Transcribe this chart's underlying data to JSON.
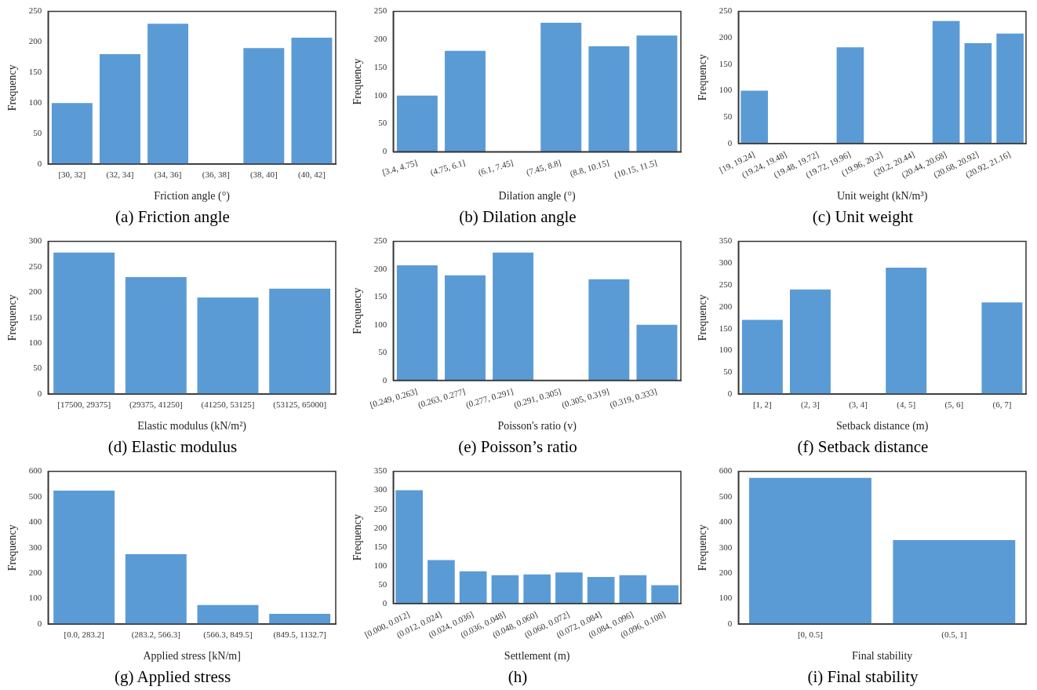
{
  "chart_data": [
    {
      "type": "bar",
      "title": "(a) Friction angle",
      "xlabel": "Friction angle (°)",
      "ylabel": "Frequency",
      "categories": [
        "[30, 32]",
        "(32, 34]",
        "(34, 36]",
        "(36, 38]",
        "(38, 40]",
        "(40, 42]"
      ],
      "values": [
        100,
        180,
        230,
        0,
        190,
        207
      ],
      "color": "#5b9bd5",
      "ylim": [
        0,
        250
      ],
      "yticks": [
        0,
        50,
        100,
        150,
        200,
        250
      ],
      "grid": false,
      "legend": false
    },
    {
      "type": "bar",
      "title": "(b) Dilation angle",
      "xlabel": "Dilation angle (°)",
      "ylabel": "Frequency",
      "categories": [
        "[3.4, 4.75]",
        "(4.75, 6.1]",
        "(6.1, 7.45]",
        "(7.45, 8.8]",
        "(8.8, 10.15]",
        "(10.15, 11.5]"
      ],
      "values": [
        100,
        180,
        0,
        230,
        188,
        207
      ],
      "color": "#5b9bd5",
      "ylim": [
        0,
        250
      ],
      "yticks": [
        0,
        50,
        100,
        150,
        200,
        250
      ],
      "grid": false,
      "legend": false
    },
    {
      "type": "bar",
      "title": "(c) Unit weight",
      "xlabel": "Unit weight (kN/m³)",
      "ylabel": "Frequency",
      "categories": [
        "[19, 19.24]",
        "(19.24, 19.48]",
        "(19.48, 19.72]",
        "(19.72, 19.96]",
        "(19.96, 20.2]",
        "(20.2, 20.44]",
        "(20.44, 20.68]",
        "(20.68, 20.92]",
        "(20.92, 21.16]"
      ],
      "values": [
        100,
        0,
        0,
        182,
        0,
        0,
        232,
        190,
        208
      ],
      "color": "#5b9bd5",
      "ylim": [
        0,
        250
      ],
      "yticks": [
        0,
        50,
        100,
        150,
        200,
        250
      ],
      "grid": false,
      "legend": false
    },
    {
      "type": "bar",
      "title": "(d) Elastic modulus",
      "xlabel": "Elastic modulus (kN/m²)",
      "ylabel": "Frequency",
      "categories": [
        "[17500, 29375]",
        "(29375, 41250]",
        "(41250, 53125]",
        "(53125, 65000]"
      ],
      "values": [
        278,
        230,
        190,
        207
      ],
      "color": "#5b9bd5",
      "ylim": [
        0,
        300
      ],
      "yticks": [
        0,
        50,
        100,
        150,
        200,
        250,
        300
      ],
      "grid": false,
      "legend": false
    },
    {
      "type": "bar",
      "title": "(e) Poisson’s ratio",
      "xlabel": "Poisson's ratio (v)",
      "ylabel": "Frequency",
      "categories": [
        "[0.249, 0.263]",
        "(0.263, 0.277]",
        "(0.277, 0.291]",
        "(0.291, 0.305]",
        "(0.305, 0.319]",
        "(0.319, 0.333]"
      ],
      "values": [
        207,
        189,
        230,
        0,
        182,
        100
      ],
      "color": "#5b9bd5",
      "ylim": [
        0,
        250
      ],
      "yticks": [
        0,
        50,
        100,
        150,
        200,
        250
      ],
      "grid": false,
      "legend": false
    },
    {
      "type": "bar",
      "title": "(f) Setback distance",
      "xlabel": "Setback distance (m)",
      "ylabel": "Frequency",
      "categories": [
        "[1, 2]",
        "(2, 3]",
        "(3, 4]",
        "(4, 5]",
        "(5, 6]",
        "(6, 7]"
      ],
      "values": [
        170,
        240,
        0,
        290,
        0,
        210
      ],
      "color": "#5b9bd5",
      "ylim": [
        0,
        350
      ],
      "yticks": [
        0,
        50,
        100,
        150,
        200,
        250,
        300,
        350
      ],
      "grid": false,
      "legend": false
    },
    {
      "type": "bar",
      "title": "(g) Applied stress",
      "xlabel": "Applied stress [kN/m]",
      "ylabel": "Frequency",
      "categories": [
        "[0.0, 283.2]",
        "(283.2, 566.3]",
        "(566.3, 849.5]",
        "(849.5, 1132.7]"
      ],
      "values": [
        525,
        275,
        75,
        40
      ],
      "color": "#5b9bd5",
      "ylim": [
        0,
        600
      ],
      "yticks": [
        0,
        100,
        200,
        300,
        400,
        500,
        600
      ],
      "grid": false,
      "legend": false
    },
    {
      "type": "bar",
      "title": "(h)",
      "xlabel": "Settlement (m)",
      "ylabel": "Frequency",
      "categories": [
        "[0.000, 0.012]",
        "(0.012, 0.024]",
        "(0.024, 0.036]",
        "(0.036, 0.048]",
        "(0.048, 0.060]",
        "(0.060, 0.072]",
        "(0.072, 0.084]",
        "(0.084, 0.096]",
        "(0.096, 0.108]"
      ],
      "values": [
        300,
        115,
        85,
        75,
        77,
        82,
        70,
        75,
        48
      ],
      "color": "#5b9bd5",
      "ylim": [
        0,
        350
      ],
      "yticks": [
        0,
        50,
        100,
        150,
        200,
        250,
        300,
        350
      ],
      "grid": false,
      "legend": false
    },
    {
      "type": "bar",
      "title": "(i) Final stability",
      "xlabel": "Final stability",
      "ylabel": "Frequency",
      "categories": [
        "[0, 0.5]",
        "(0.5, 1]"
      ],
      "values": [
        575,
        330
      ],
      "color": "#5b9bd5",
      "ylim": [
        0,
        600
      ],
      "yticks": [
        0,
        100,
        200,
        300,
        400,
        500,
        600
      ],
      "grid": false,
      "legend": false
    }
  ]
}
